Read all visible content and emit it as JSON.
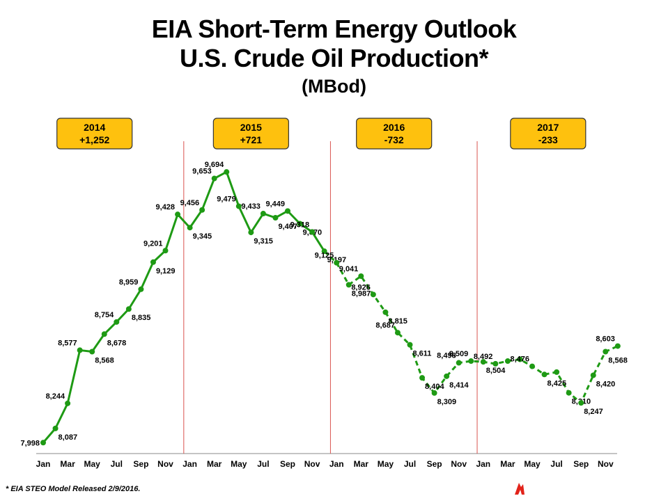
{
  "title": {
    "line1": "EIA Short-Term Energy Outlook",
    "line2": "U.S. Crude Oil Production*",
    "units": "(MBod)"
  },
  "footnote": "* EIA STEO Model Released 2/9/2016.",
  "colors": {
    "line": "#1e9a14",
    "box_fill": "#fec10e",
    "box_border": "#333333",
    "divider": "#d9534f"
  },
  "chart_data": {
    "type": "line",
    "title": "U.S. Crude Oil Production",
    "ylabel": "MBod",
    "xlabel": "",
    "x_tick_labels": [
      "Jan",
      "Mar",
      "May",
      "Jul",
      "Sep",
      "Nov",
      "Jan",
      "Mar",
      "May",
      "Jul",
      "Sep",
      "Nov",
      "Jan",
      "Mar",
      "May",
      "Jul",
      "Sep",
      "Nov",
      "Jan",
      "Mar",
      "May",
      "Jul",
      "Sep",
      "Nov"
    ],
    "months": [
      "Jan 2014",
      "Feb 2014",
      "Mar 2014",
      "Apr 2014",
      "May 2014",
      "Jun 2014",
      "Jul 2014",
      "Aug 2014",
      "Sep 2014",
      "Oct 2014",
      "Nov 2014",
      "Dec 2014",
      "Jan 2015",
      "Feb 2015",
      "Mar 2015",
      "Apr 2015",
      "May 2015",
      "Jun 2015",
      "Jul 2015",
      "Aug 2015",
      "Sep 2015",
      "Oct 2015",
      "Nov 2015",
      "Dec 2015",
      "Jan 2016",
      "Feb 2016",
      "Mar 2016",
      "Apr 2016",
      "May 2016",
      "Jun 2016",
      "Jul 2016",
      "Aug 2016",
      "Sep 2016",
      "Oct 2016",
      "Nov 2016",
      "Dec 2016",
      "Jan 2017",
      "Feb 2017",
      "Mar 2017",
      "Apr 2017",
      "May 2017",
      "Jun 2017",
      "Jul 2017",
      "Aug 2017",
      "Sep 2017",
      "Oct 2017",
      "Nov 2017",
      "Dec 2017"
    ],
    "series": [
      {
        "name": "U.S. Crude Oil Production",
        "values": [
          7998,
          8087,
          8244,
          8577,
          8568,
          8678,
          8754,
          8835,
          8959,
          9129,
          9201,
          9428,
          9345,
          9456,
          9653,
          9694,
          9479,
          9315,
          9433,
          9407,
          9449,
          9370,
          9318,
          9197,
          9125,
          8987,
          9041,
          8926,
          8815,
          8687,
          8611,
          8404,
          8309,
          8414,
          8498,
          8509,
          8504,
          8492,
          8509,
          8520,
          8476,
          8425,
          8440,
          8310,
          8247,
          8420,
          8568,
          8603
        ],
        "labels": [
          "7,998",
          "8,087",
          "8,244",
          "8,577",
          "8,568",
          "8,678",
          "8,754",
          "8,835",
          "8,959",
          "9,129",
          "9,201",
          "9,428",
          "9,345",
          "9,456",
          "9,653",
          "9,694",
          "9,479",
          "9,315",
          "9,433",
          "9,407",
          "9,449",
          "9,370",
          "9,318",
          "9,197",
          "9,125",
          "8,987",
          "9,041",
          "8,926",
          "8,815",
          "8,687",
          "8,611",
          "8,404",
          "8,309",
          "8,414",
          "8,498",
          "8,509",
          "8,504",
          "8,492",
          "",
          "",
          "8,476",
          "8,425",
          "",
          "8,310",
          "8,247",
          "8,420",
          "8,568",
          "8,603"
        ],
        "label_below": [
          false,
          true,
          false,
          false,
          true,
          true,
          false,
          true,
          false,
          true,
          false,
          false,
          true,
          false,
          false,
          false,
          false,
          true,
          false,
          true,
          false,
          true,
          false,
          true,
          false,
          true,
          false,
          false,
          true,
          false,
          true,
          true,
          true,
          true,
          false,
          false,
          true,
          false,
          false,
          false,
          false,
          true,
          false,
          true,
          true,
          true,
          true,
          false
        ],
        "actual_through": "Dec 2015",
        "forecast_from": "Jan 2016"
      }
    ],
    "ylim": [
      7960,
      9760
    ],
    "years": [
      {
        "year": "2014",
        "change": "+1,252"
      },
      {
        "year": "2015",
        "change": "+721"
      },
      {
        "year": "2016",
        "change": "-732"
      },
      {
        "year": "2017",
        "change": "-233"
      }
    ],
    "grid": false
  }
}
